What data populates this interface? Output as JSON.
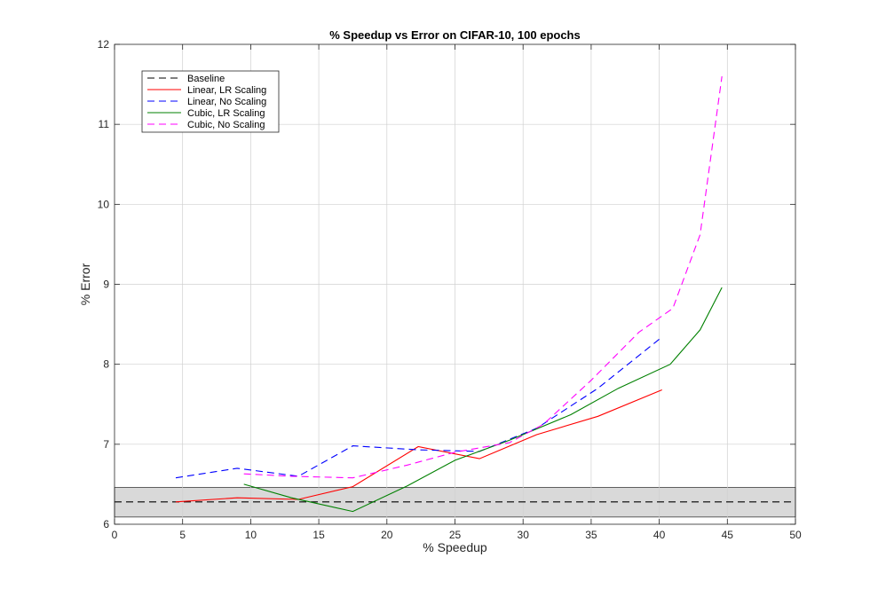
{
  "chart_data": {
    "type": "line",
    "title": "% Speedup vs Error on CIFAR-10, 100 epochs",
    "xlabel": "% Speedup",
    "ylabel": "% Error",
    "xlim": [
      0,
      50
    ],
    "ylim": [
      6,
      12
    ],
    "xticks": [
      0,
      5,
      10,
      15,
      20,
      25,
      30,
      35,
      40,
      45,
      50
    ],
    "yticks": [
      6,
      7,
      8,
      9,
      10,
      11,
      12
    ],
    "grid": true,
    "legend_position": "top-left",
    "baseline_band": {
      "low": 6.09,
      "high": 6.46,
      "color": "#d9d9d9"
    },
    "series": [
      {
        "name": "Baseline",
        "color": "#000000",
        "dash": true,
        "x": [
          0,
          50
        ],
        "y": [
          6.28,
          6.28
        ]
      },
      {
        "name": "Linear, LR Scaling",
        "color": "#ff0000",
        "dash": false,
        "x": [
          4.5,
          9.0,
          13.5,
          17.5,
          22.3,
          26.8,
          31.0,
          35.5,
          40.2
        ],
        "y": [
          6.28,
          6.33,
          6.31,
          6.47,
          6.97,
          6.82,
          7.12,
          7.35,
          7.68
        ]
      },
      {
        "name": "Linear, No Scaling",
        "color": "#0000ff",
        "dash": true,
        "x": [
          4.5,
          9.0,
          13.5,
          17.5,
          22.3,
          26.8,
          31.0,
          35.5,
          40.2
        ],
        "y": [
          6.58,
          6.7,
          6.6,
          6.98,
          6.93,
          6.91,
          7.2,
          7.7,
          8.34
        ]
      },
      {
        "name": "Cubic, LR Scaling",
        "color": "#008000",
        "dash": false,
        "x": [
          9.5,
          13.0,
          17.5,
          21.5,
          25.0,
          29.0,
          33.5,
          37.0,
          40.8,
          43.0,
          44.6
        ],
        "y": [
          6.5,
          6.33,
          6.16,
          6.48,
          6.8,
          7.05,
          7.37,
          7.7,
          8.0,
          8.43,
          8.96
        ]
      },
      {
        "name": "Cubic, No Scaling",
        "color": "#ff00ff",
        "dash": true,
        "x": [
          9.5,
          13.0,
          17.5,
          21.5,
          25.0,
          29.0,
          31.5,
          35.0,
          38.5,
          41.0,
          43.0,
          44.6
        ],
        "y": [
          6.63,
          6.6,
          6.58,
          6.74,
          6.9,
          7.02,
          7.25,
          7.8,
          8.4,
          8.7,
          9.62,
          11.6
        ]
      }
    ]
  }
}
